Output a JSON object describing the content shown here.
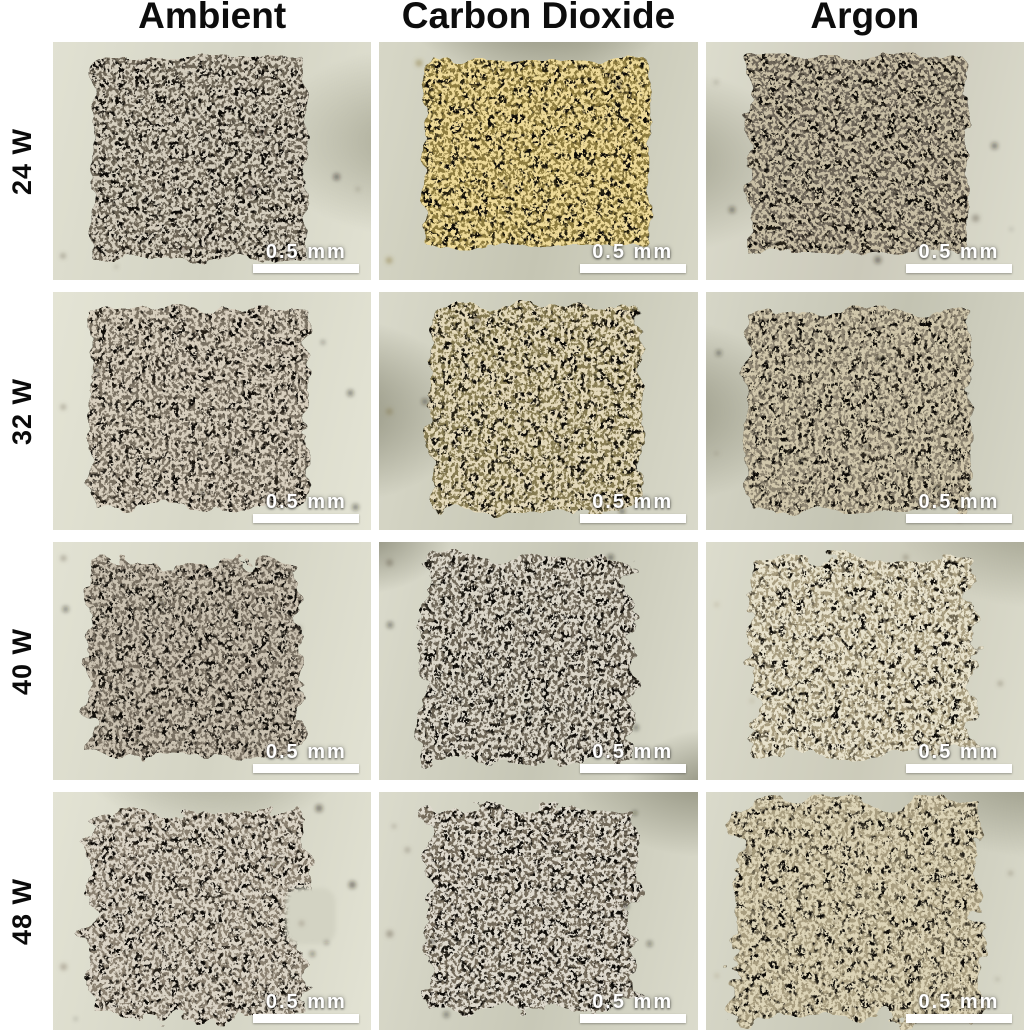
{
  "figure": {
    "scale_label": "0.5 mm",
    "pore_color": "#0c0a07",
    "label_color": "#0a0a0a",
    "page_background": "#ffffff",
    "columns": [
      {
        "label": "Ambient"
      },
      {
        "label": "Carbon Dioxide"
      },
      {
        "label": "Argon"
      }
    ],
    "rows": [
      {
        "label": "24 W"
      },
      {
        "label": "32 W"
      },
      {
        "label": "40 W"
      },
      {
        "label": "48 W"
      }
    ],
    "cells": [
      {
        "id": "24w-ambient",
        "row": "24 W",
        "column": "Ambient",
        "colors": {
          "bg1": "#e1e1d2",
          "bg2": "#d3d3c3",
          "shadow": "#9a9a86",
          "base": "#1d1913",
          "fleck1": "#6e6657",
          "fleck2": "#d5cebe"
        }
      },
      {
        "id": "24w-carbon-dioxide",
        "row": "24 W",
        "column": "Carbon Dioxide",
        "colors": {
          "bg1": "#d7d7c7",
          "bg2": "#c5c5b3",
          "shadow": "#60604c",
          "base": "#262110",
          "fleck1": "#8d7c40",
          "fleck2": "#eeda98"
        }
      },
      {
        "id": "24w-argon",
        "row": "24 W",
        "column": "Argon",
        "colors": {
          "bg1": "#dcdccd",
          "bg2": "#cbc9ba",
          "shadow": "#8e8e7a",
          "base": "#241f17",
          "fleck1": "#6f675a",
          "fleck2": "#c9bfa5"
        }
      },
      {
        "id": "32w-ambient",
        "row": "32 W",
        "column": "Ambient",
        "colors": {
          "bg1": "#e4e4d5",
          "bg2": "#d7d7c7",
          "shadow": "#a2a28e",
          "base": "#231e16",
          "fleck1": "#7b7263",
          "fleck2": "#d8cfbe"
        }
      },
      {
        "id": "32w-carbon-dioxide",
        "row": "32 W",
        "column": "Carbon Dioxide",
        "colors": {
          "bg1": "#d9d9ca",
          "bg2": "#c7c7b5",
          "shadow": "#757561",
          "base": "#242013",
          "fleck1": "#877c52",
          "fleck2": "#e4d9ba"
        }
      },
      {
        "id": "32w-argon",
        "row": "32 W",
        "column": "Argon",
        "colors": {
          "bg1": "#d6d6c7",
          "bg2": "#c3c3b2",
          "shadow": "#81816d",
          "base": "#2b261d",
          "fleck1": "#8d8471",
          "fleck2": "#d1c7ab"
        }
      },
      {
        "id": "40w-ambient",
        "row": "40 W",
        "column": "Ambient",
        "colors": {
          "bg1": "#e2e2d3",
          "bg2": "#d4d4c4",
          "shadow": "#979783",
          "base": "#221e17",
          "fleck1": "#7a7163",
          "fleck2": "#cbc2b1"
        }
      },
      {
        "id": "40w-carbon-dioxide",
        "row": "40 W",
        "column": "Carbon Dioxide",
        "colors": {
          "bg1": "#dbdbcc",
          "bg2": "#c6c6b5",
          "shadow": "#6c6c59",
          "base": "#1f1c15",
          "fleck1": "#6f6758",
          "fleck2": "#dbd6c9"
        }
      },
      {
        "id": "40w-argon",
        "row": "40 W",
        "column": "Argon",
        "colors": {
          "bg1": "#dcdccd",
          "bg2": "#cccbba",
          "shadow": "#8b8b77",
          "base": "#6d6550",
          "fleck1": "#a89d7f",
          "fleck2": "#e8e2cc"
        }
      },
      {
        "id": "48w-ambient",
        "row": "48 W",
        "column": "Ambient",
        "colors": {
          "bg1": "#e3e3d4",
          "bg2": "#d3d3c3",
          "shadow": "#8d8d79",
          "base": "#241f17",
          "fleck1": "#8a8070",
          "fleck2": "#dbd4c6"
        }
      },
      {
        "id": "48w-carbon-dioxide",
        "row": "48 W",
        "column": "Carbon Dioxide",
        "colors": {
          "bg1": "#dbdbcc",
          "bg2": "#c8c8b7",
          "shadow": "#71715d",
          "base": "#201d16",
          "fleck1": "#756c5c",
          "fleck2": "#ded9cd"
        }
      },
      {
        "id": "48w-argon",
        "row": "48 W",
        "column": "Argon",
        "colors": {
          "bg1": "#dadacb",
          "bg2": "#c7c7b6",
          "shadow": "#7f7f6b",
          "base": "#6d6550",
          "fleck1": "#a89d7f",
          "fleck2": "#ddd4b7"
        }
      }
    ]
  }
}
